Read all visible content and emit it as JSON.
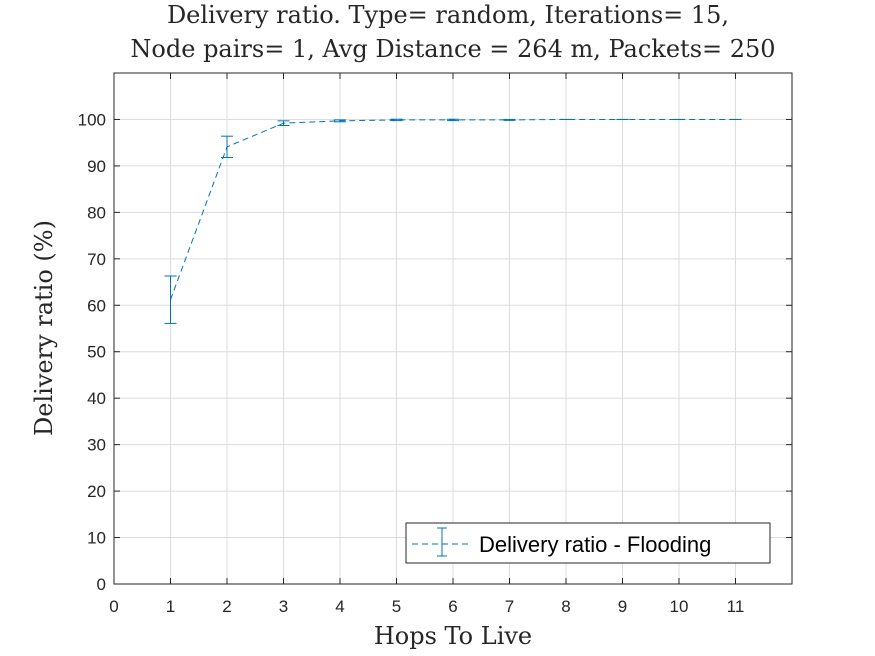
{
  "chart_data": {
    "type": "line",
    "title_lines": [
      "Delivery ratio. Type= random, Iterations= 15,",
      "Node pairs= 1, Avg Distance = 264 m, Packets= 250"
    ],
    "xlabel": "Hops To Live",
    "ylabel": "Delivery ratio (%)",
    "xlim": [
      0,
      12
    ],
    "ylim": [
      0,
      110
    ],
    "xticks": [
      0,
      1,
      2,
      3,
      4,
      5,
      6,
      7,
      8,
      9,
      10,
      11
    ],
    "yticks": [
      0,
      10,
      20,
      30,
      40,
      50,
      60,
      70,
      80,
      90,
      100
    ],
    "grid": true,
    "legend_position": "bottom-right",
    "series": [
      {
        "name": "Delivery ratio - Flooding",
        "color": "#0072BD",
        "line_style": "dashed",
        "x": [
          1,
          2,
          3,
          4,
          5,
          6,
          7,
          8,
          9,
          10,
          11
        ],
        "y": [
          61.2,
          94.1,
          99.2,
          99.7,
          99.9,
          99.9,
          99.9,
          100,
          100,
          100,
          100
        ],
        "error": [
          5.1,
          2.3,
          0.5,
          0.2,
          0.15,
          0.15,
          0.1,
          0,
          0,
          0,
          0
        ]
      }
    ]
  }
}
